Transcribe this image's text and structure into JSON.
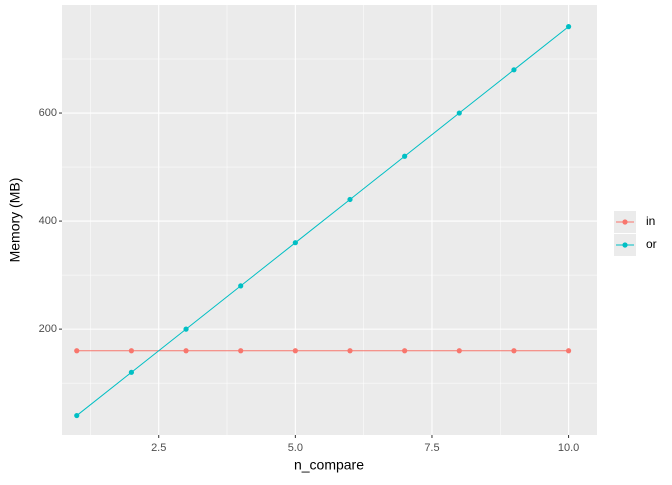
{
  "chart_data": {
    "type": "line",
    "x_label": "n_compare",
    "y_label": "Memory (MB)",
    "x": [
      1,
      2,
      3,
      4,
      5,
      6,
      7,
      8,
      9,
      10
    ],
    "series": [
      {
        "name": "in",
        "color": "#F8766D",
        "values": [
          160,
          160,
          160,
          160,
          160,
          160,
          160,
          160,
          160,
          160
        ]
      },
      {
        "name": "or",
        "color": "#00BFC4",
        "values": [
          40,
          120,
          200,
          280,
          360,
          440,
          520,
          600,
          680,
          760
        ]
      }
    ],
    "xlim": [
      0.73,
      10.52
    ],
    "xticks": [
      {
        "value": 2.5,
        "label": "2.5"
      },
      {
        "value": 5,
        "label": "5.0"
      },
      {
        "value": 7.5,
        "label": "7.5"
      },
      {
        "value": 10,
        "label": "10.0"
      }
    ],
    "ylim": [
      4,
      800
    ],
    "yticks": [
      200,
      400,
      600
    ],
    "grid": true
  }
}
